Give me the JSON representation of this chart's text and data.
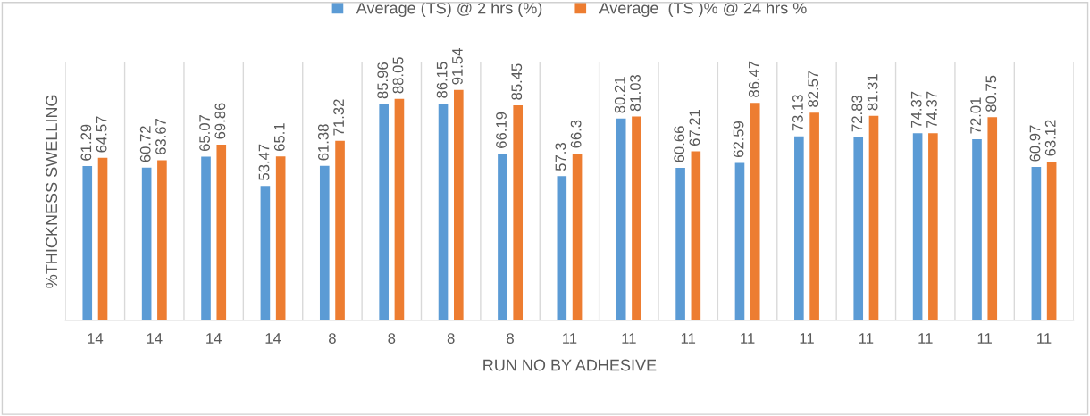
{
  "chart_data": {
    "type": "bar",
    "xlabel": "RUN NO BY ADHESIVE",
    "ylabel": "%THICKNESS SWELLING",
    "categories": [
      "14",
      "14",
      "14",
      "14",
      "8",
      "8",
      "8",
      "8",
      "11",
      "11",
      "11",
      "11",
      "11",
      "11",
      "11",
      "11",
      "11"
    ],
    "series": [
      {
        "name": "Average (TS) @ 2 hrs (%)",
        "color": "#5b9bd5",
        "values": [
          61.29,
          60.72,
          65.07,
          53.47,
          61.38,
          85.96,
          86.15,
          66.19,
          57.3,
          80.21,
          60.66,
          62.59,
          73.13,
          72.83,
          74.37,
          72.01,
          60.97
        ]
      },
      {
        "name": "Average  (TS )% @ 24 hrs %",
        "color": "#ed7d31",
        "values": [
          64.57,
          63.67,
          69.86,
          65.1,
          71.32,
          88.05,
          91.54,
          85.45,
          66.3,
          81.03,
          67.21,
          86.47,
          82.57,
          81.31,
          74.37,
          80.75,
          63.12
        ]
      }
    ],
    "data_labels": true,
    "grid": "x",
    "legend": "top",
    "tick_labels": "x"
  }
}
